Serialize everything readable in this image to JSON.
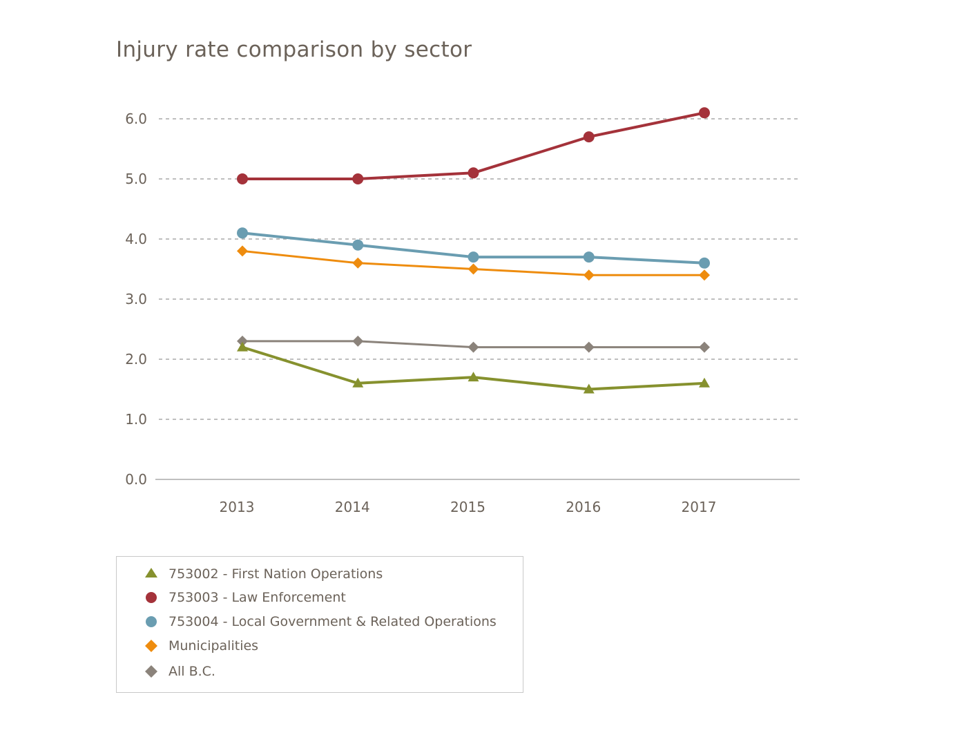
{
  "chart_data": {
    "type": "line",
    "title": "Injury rate comparison by sector",
    "xlabel": "",
    "ylabel": "",
    "categories": [
      "2013",
      "2014",
      "2015",
      "2016",
      "2017"
    ],
    "ylim": [
      0,
      6.0
    ],
    "yticks": [
      "0.0",
      "1.0",
      "2.0",
      "3.0",
      "4.0",
      "5.0",
      "6.0"
    ],
    "grid": "horizontal dashed",
    "legend_position": "bottom-left",
    "series": [
      {
        "name": "753002 - First Nation Operations",
        "marker": "triangle",
        "color": "#86912e",
        "values": [
          2.2,
          1.6,
          1.7,
          1.5,
          1.6
        ]
      },
      {
        "name": "753003 - Law Enforcement",
        "marker": "circle",
        "color": "#a4323a",
        "values": [
          5.0,
          5.0,
          5.1,
          5.7,
          6.1
        ]
      },
      {
        "name": "753004 - Local Government & Related Operations",
        "marker": "circle",
        "color": "#6a9db1",
        "values": [
          4.1,
          3.9,
          3.7,
          3.7,
          3.6
        ]
      },
      {
        "name": "Municipalities",
        "marker": "diamond",
        "color": "#ee8c0e",
        "values": [
          3.8,
          3.6,
          3.5,
          3.4,
          3.4
        ]
      },
      {
        "name": "All B.C.",
        "marker": "diamond",
        "color": "#8b837b",
        "values": [
          2.3,
          2.3,
          2.2,
          2.2,
          2.2
        ]
      }
    ]
  }
}
